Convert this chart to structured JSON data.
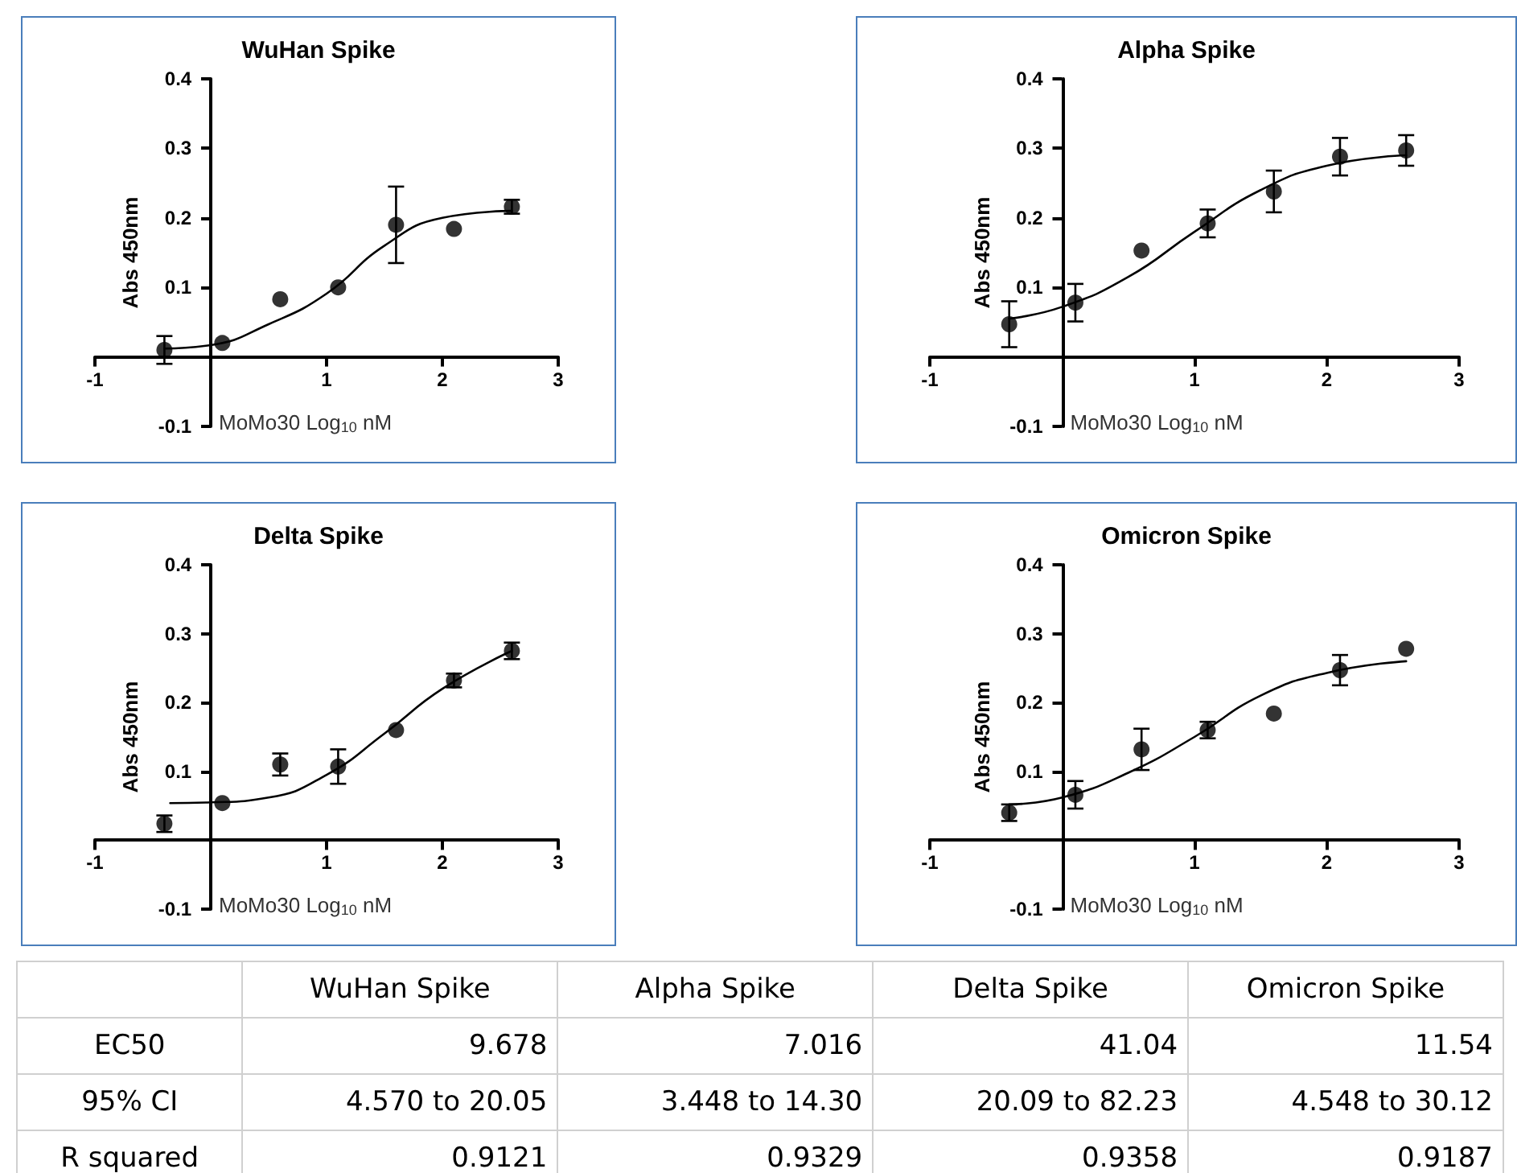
{
  "chart_data": [
    {
      "type": "scatter",
      "title": "WuHan Spike",
      "xlabel": "MoMo30 Log$_{10}$ nM",
      "ylabel": "Abs 450nm",
      "xlim": [
        -1,
        3
      ],
      "xticks": [
        -1,
        1,
        2,
        3
      ],
      "ylim": [
        -0.1,
        0.4
      ],
      "yticks": [
        -0.1,
        0.1,
        0.2,
        0.3,
        0.4
      ],
      "grid": false,
      "series": [
        {
          "type": "scatter",
          "marker": "circle",
          "color": "#000000",
          "x": [
            -0.4,
            0.1,
            0.6,
            1.1,
            1.6,
            2.1,
            2.6
          ],
          "values": [
            0.01,
            0.02,
            0.083,
            0.1,
            0.19,
            0.184,
            0.216
          ],
          "errors": [
            0.02,
            null,
            null,
            null,
            0.055,
            null,
            0.01
          ]
        },
        {
          "type": "line",
          "color": "#000000",
          "line_style": "solid",
          "x": [
            -0.4,
            0,
            0.5,
            1,
            1.5,
            2,
            2.6
          ],
          "values": [
            0.012,
            0.017,
            0.047,
            0.091,
            0.16,
            0.2,
            0.21
          ]
        }
      ]
    },
    {
      "type": "scatter",
      "title": "Alpha Spike",
      "xlabel": "MoMo30 Log$_{10}$ nM",
      "ylabel": "Abs 450nm",
      "xlim": [
        -1,
        3
      ],
      "xticks": [
        -1,
        1,
        2,
        3
      ],
      "ylim": [
        -0.1,
        0.4
      ],
      "yticks": [
        -0.1,
        0.1,
        0.2,
        0.3,
        0.4
      ],
      "grid": false,
      "series": [
        {
          "type": "scatter",
          "marker": "circle",
          "color": "#000000",
          "x": [
            -0.4,
            0.1,
            0.6,
            1.1,
            1.6,
            2.1,
            2.6
          ],
          "values": [
            0.047,
            0.078,
            0.153,
            0.192,
            0.238,
            0.288,
            0.297
          ],
          "errors": [
            0.033,
            0.027,
            null,
            0.02,
            0.03,
            0.027,
            0.022
          ]
        },
        {
          "type": "line",
          "color": "#000000",
          "line_style": "solid",
          "x": [
            -0.4,
            0,
            0.5,
            1,
            1.5,
            2,
            2.6
          ],
          "values": [
            0.055,
            0.072,
            0.115,
            0.18,
            0.24,
            0.275,
            0.29
          ]
        }
      ]
    },
    {
      "type": "scatter",
      "title": "Delta Spike",
      "xlabel": "MoMo30 Log$_{10}$ nM",
      "ylabel": "Abs 450nm",
      "xlim": [
        -1,
        3
      ],
      "xticks": [
        -1,
        1,
        2,
        3
      ],
      "ylim": [
        -0.1,
        0.4
      ],
      "yticks": [
        -0.1,
        0.1,
        0.2,
        0.3,
        0.4
      ],
      "grid": false,
      "series": [
        {
          "type": "scatter",
          "marker": "circle",
          "color": "#000000",
          "x": [
            -0.4,
            0.1,
            0.6,
            1.1,
            1.6,
            2.1,
            2.6
          ],
          "values": [
            0.024,
            0.054,
            0.11,
            0.107,
            0.16,
            0.232,
            0.275
          ],
          "errors": [
            0.012,
            null,
            0.016,
            0.025,
            null,
            0.01,
            0.012
          ]
        },
        {
          "type": "line",
          "color": "#000000",
          "line_style": "solid",
          "x": [
            -0.35,
            0,
            0.5,
            1,
            1.5,
            2,
            2.6
          ],
          "values": [
            0.054,
            0.055,
            0.062,
            0.095,
            0.155,
            0.22,
            0.275
          ]
        }
      ]
    },
    {
      "type": "scatter",
      "title": "Omicron Spike",
      "xlabel": "MoMo30 Log$_{10}$ nM",
      "ylabel": "Abs 450nm",
      "xlim": [
        -1,
        3
      ],
      "xticks": [
        -1,
        1,
        2,
        3
      ],
      "ylim": [
        -0.1,
        0.4
      ],
      "yticks": [
        -0.1,
        0.1,
        0.2,
        0.3,
        0.4
      ],
      "grid": false,
      "series": [
        {
          "type": "scatter",
          "marker": "circle",
          "color": "#000000",
          "x": [
            -0.4,
            0.1,
            0.6,
            1.1,
            1.6,
            2.1,
            2.6
          ],
          "values": [
            0.04,
            0.066,
            0.132,
            0.16,
            0.184,
            0.247,
            0.278
          ],
          "errors": [
            0.012,
            0.02,
            0.03,
            0.012,
            null,
            0.022,
            null
          ]
        },
        {
          "type": "line",
          "color": "#000000",
          "line_style": "solid",
          "x": [
            -0.4,
            0,
            0.5,
            1,
            1.5,
            2,
            2.6
          ],
          "values": [
            0.052,
            0.062,
            0.098,
            0.15,
            0.21,
            0.243,
            0.26
          ]
        }
      ]
    },
    {
      "type": "other",
      "categories": [
        null,
        "WuHan Spike",
        "Alpha Spike",
        "Delta Spike",
        "Omicron Spike"
      ],
      "y_categories": [
        "EC50",
        "95% CI",
        "R squared"
      ],
      "cell_labels": [
        [
          "9.678",
          "7.016",
          "41.04",
          "11.54"
        ],
        [
          "4.570 to 20.05",
          "3.448 to 14.30",
          "20.09 to 82.23",
          "4.548 to 30.12"
        ],
        [
          "0.9121",
          "0.9329",
          "0.9358",
          "0.9187"
        ]
      ]
    }
  ]
}
